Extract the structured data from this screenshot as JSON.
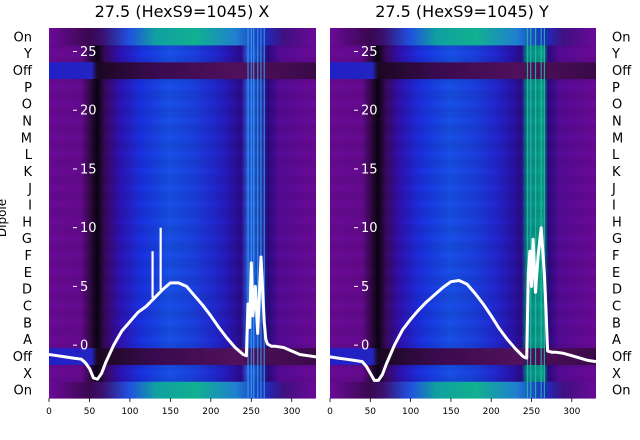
{
  "figure": {
    "y_axis_label": "Dipole"
  },
  "chart_data": [
    {
      "type": "heatmap",
      "title": "27.5 (HexS9=1045) X",
      "categories": [
        "On",
        "X",
        "Off",
        "A",
        "B",
        "C",
        "D",
        "E",
        "F",
        "G",
        "H",
        "I",
        "J",
        "K",
        "L",
        "M",
        "N",
        "O",
        "P",
        "Off",
        "Y",
        "On"
      ],
      "xlim": [
        0,
        330
      ],
      "x_ticks": [
        0,
        50,
        100,
        150,
        200,
        250,
        300
      ],
      "overlay_ylim": [
        -4.5,
        27
      ],
      "overlay_y_ticks": [
        0,
        5,
        10,
        15,
        20,
        25
      ],
      "overlay_x": [
        0,
        10,
        20,
        30,
        40,
        45,
        50,
        55,
        60,
        65,
        70,
        80,
        90,
        100,
        110,
        120,
        130,
        140,
        150,
        160,
        170,
        180,
        190,
        200,
        210,
        220,
        230,
        240,
        244,
        246,
        248,
        250,
        252,
        255,
        258,
        262,
        266,
        268,
        270,
        275,
        280,
        290,
        300,
        310,
        320,
        330
      ],
      "overlay_y": [
        -0.8,
        -0.9,
        -1.0,
        -1.1,
        -1.2,
        -1.5,
        -2.0,
        -2.8,
        -2.9,
        -2.4,
        -1.5,
        0.0,
        1.2,
        2.0,
        2.8,
        3.3,
        4.0,
        4.7,
        5.3,
        5.3,
        5.0,
        4.2,
        3.4,
        2.5,
        1.5,
        0.6,
        -0.2,
        -0.8,
        -0.9,
        3.5,
        1.5,
        7.0,
        2.5,
        5.0,
        1.0,
        7.5,
        2.0,
        0.5,
        0.1,
        -0.1,
        -0.1,
        -0.2,
        -0.5,
        -0.8,
        -0.9,
        -1.0
      ],
      "spikes": [
        {
          "x": 128,
          "y": 8
        },
        {
          "x": 138,
          "y": 10
        }
      ]
    },
    {
      "type": "heatmap",
      "title": "27.5 (HexS9=1045) Y",
      "categories": [
        "On",
        "X",
        "Off",
        "A",
        "B",
        "C",
        "D",
        "E",
        "F",
        "G",
        "H",
        "I",
        "J",
        "K",
        "L",
        "M",
        "N",
        "O",
        "P",
        "Off",
        "Y",
        "On"
      ],
      "xlim": [
        0,
        330
      ],
      "x_ticks": [
        0,
        50,
        100,
        150,
        200,
        250,
        300
      ],
      "overlay_ylim": [
        -4.5,
        27
      ],
      "overlay_y_ticks": [
        0,
        5,
        10,
        15,
        20,
        25
      ],
      "overlay_x": [
        0,
        10,
        20,
        30,
        40,
        45,
        50,
        55,
        60,
        65,
        70,
        80,
        90,
        100,
        110,
        120,
        130,
        140,
        150,
        160,
        170,
        180,
        190,
        200,
        210,
        220,
        230,
        240,
        244,
        246,
        248,
        250,
        252,
        255,
        258,
        262,
        266,
        268,
        270,
        275,
        280,
        290,
        300,
        310,
        320,
        330
      ],
      "overlay_y": [
        -1.0,
        -1.1,
        -1.2,
        -1.3,
        -1.4,
        -1.8,
        -2.4,
        -3.0,
        -3.0,
        -2.5,
        -1.6,
        0.0,
        1.3,
        2.2,
        3.0,
        3.7,
        4.3,
        4.9,
        5.4,
        5.5,
        5.2,
        4.4,
        3.5,
        2.5,
        1.4,
        0.5,
        -0.3,
        -1.0,
        -1.1,
        6.0,
        8.0,
        5.0,
        9.0,
        4.5,
        7.5,
        10.0,
        6.0,
        3.0,
        -0.5,
        -0.6,
        -0.6,
        -0.7,
        -0.9,
        -1.1,
        -1.3,
        -1.4
      ],
      "spikes": []
    }
  ]
}
